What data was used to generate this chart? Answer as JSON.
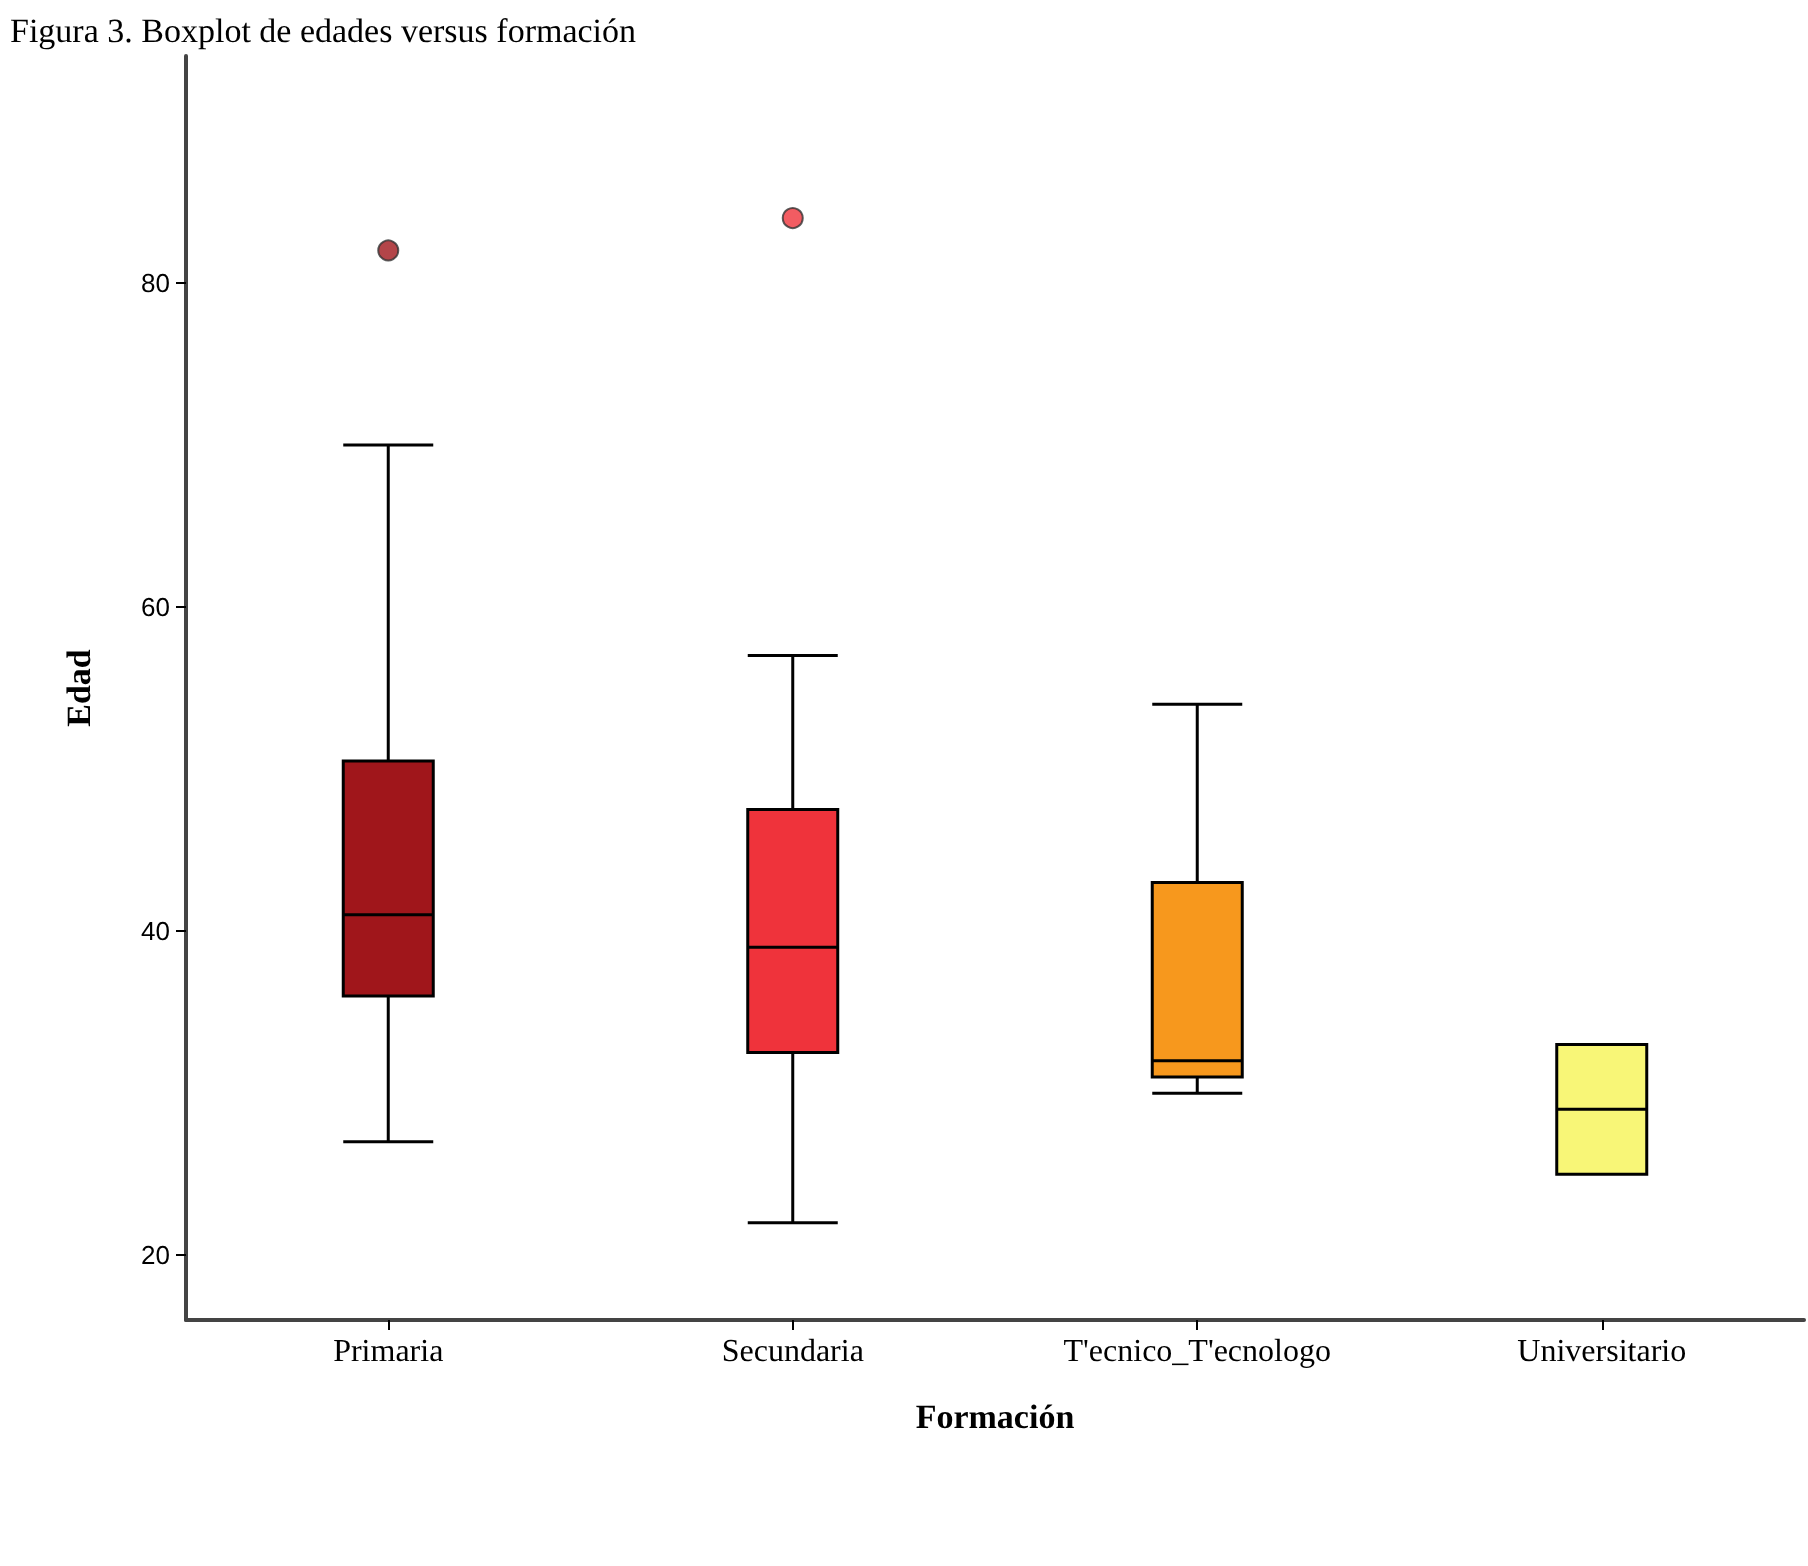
{
  "chart_data": {
    "type": "box",
    "title": "Figura 3. Boxplot de edades versus formación",
    "xlabel": "Formación",
    "ylabel": "Edad",
    "categories": [
      "Primaria",
      "Secundaria",
      "T'ecnico_T'ecnologo",
      "Universitario"
    ],
    "boxes": [
      {
        "low": 27,
        "q1": 36,
        "median": 41,
        "q3": 50.5,
        "high": 70,
        "outliers": [
          82
        ]
      },
      {
        "low": 22,
        "q1": 32.5,
        "median": 39,
        "q3": 47.5,
        "high": 57,
        "outliers": [
          84
        ]
      },
      {
        "low": 30,
        "q1": 31,
        "median": 32,
        "q3": 43,
        "high": 54
      },
      {
        "low": 25,
        "q1": 25,
        "median": 29,
        "q3": 33,
        "high": 33
      }
    ],
    "colors": [
      "#a0161b",
      "#ef333b",
      "#f7981d",
      "#f8f677"
    ],
    "ylim": [
      16,
      94
    ],
    "yticks": [
      20,
      40,
      60,
      80
    ],
    "grid": false
  }
}
